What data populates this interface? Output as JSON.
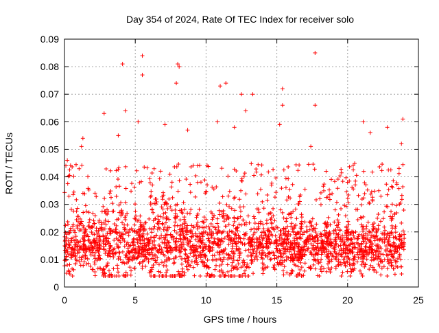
{
  "chart_data": {
    "type": "scatter",
    "title": "Day 354 of 2024, Rate Of TEC Index for receiver solo",
    "xlabel": "GPS time / hours",
    "ylabel": "ROTI / TECUs",
    "xlim": [
      0,
      25
    ],
    "ylim": [
      0,
      0.09
    ],
    "x_ticks": [
      0,
      5,
      10,
      15,
      20,
      25
    ],
    "x_tick_labels": [
      "0",
      "5",
      "10",
      "15",
      "20",
      "25"
    ],
    "y_ticks": [
      0,
      0.01,
      0.02,
      0.03,
      0.04,
      0.05,
      0.06,
      0.07,
      0.08,
      0.09
    ],
    "y_tick_labels": [
      "0",
      "0.01",
      "0.02",
      "0.03",
      "0.04",
      "0.05",
      "0.06",
      "0.07",
      "0.08",
      "0.09"
    ],
    "grid": true,
    "marker": "+",
    "color": "#ff0000",
    "series": [
      {
        "name": "ROTI",
        "dense_band": {
          "x_range": [
            0,
            24
          ],
          "typical_range": [
            0.006,
            0.03
          ],
          "center": 0.015
        },
        "outliers": [
          {
            "x": 4.1,
            "y": 0.081
          },
          {
            "x": 5.5,
            "y": 0.084
          },
          {
            "x": 5.5,
            "y": 0.077
          },
          {
            "x": 8.0,
            "y": 0.081
          },
          {
            "x": 8.1,
            "y": 0.08
          },
          {
            "x": 7.9,
            "y": 0.074
          },
          {
            "x": 17.7,
            "y": 0.085
          },
          {
            "x": 17.7,
            "y": 0.066
          },
          {
            "x": 11.0,
            "y": 0.073
          },
          {
            "x": 11.4,
            "y": 0.074
          },
          {
            "x": 12.5,
            "y": 0.07
          },
          {
            "x": 13.3,
            "y": 0.07
          },
          {
            "x": 15.4,
            "y": 0.072
          },
          {
            "x": 15.4,
            "y": 0.066
          },
          {
            "x": 2.8,
            "y": 0.063
          },
          {
            "x": 4.3,
            "y": 0.064
          },
          {
            "x": 5.2,
            "y": 0.06
          },
          {
            "x": 7.1,
            "y": 0.059
          },
          {
            "x": 10.8,
            "y": 0.06
          },
          {
            "x": 12.8,
            "y": 0.064
          },
          {
            "x": 15.2,
            "y": 0.059
          },
          {
            "x": 21.1,
            "y": 0.06
          },
          {
            "x": 23.9,
            "y": 0.061
          },
          {
            "x": 22.8,
            "y": 0.058
          },
          {
            "x": 8.7,
            "y": 0.057
          },
          {
            "x": 12.0,
            "y": 0.058
          },
          {
            "x": 1.3,
            "y": 0.054
          },
          {
            "x": 1.2,
            "y": 0.051
          },
          {
            "x": 3.8,
            "y": 0.055
          },
          {
            "x": 21.6,
            "y": 0.056
          },
          {
            "x": 23.8,
            "y": 0.052
          },
          {
            "x": 17.4,
            "y": 0.051
          },
          {
            "x": 0.2,
            "y": 0.046
          },
          {
            "x": 0.1,
            "y": 0.044
          }
        ]
      }
    ]
  }
}
